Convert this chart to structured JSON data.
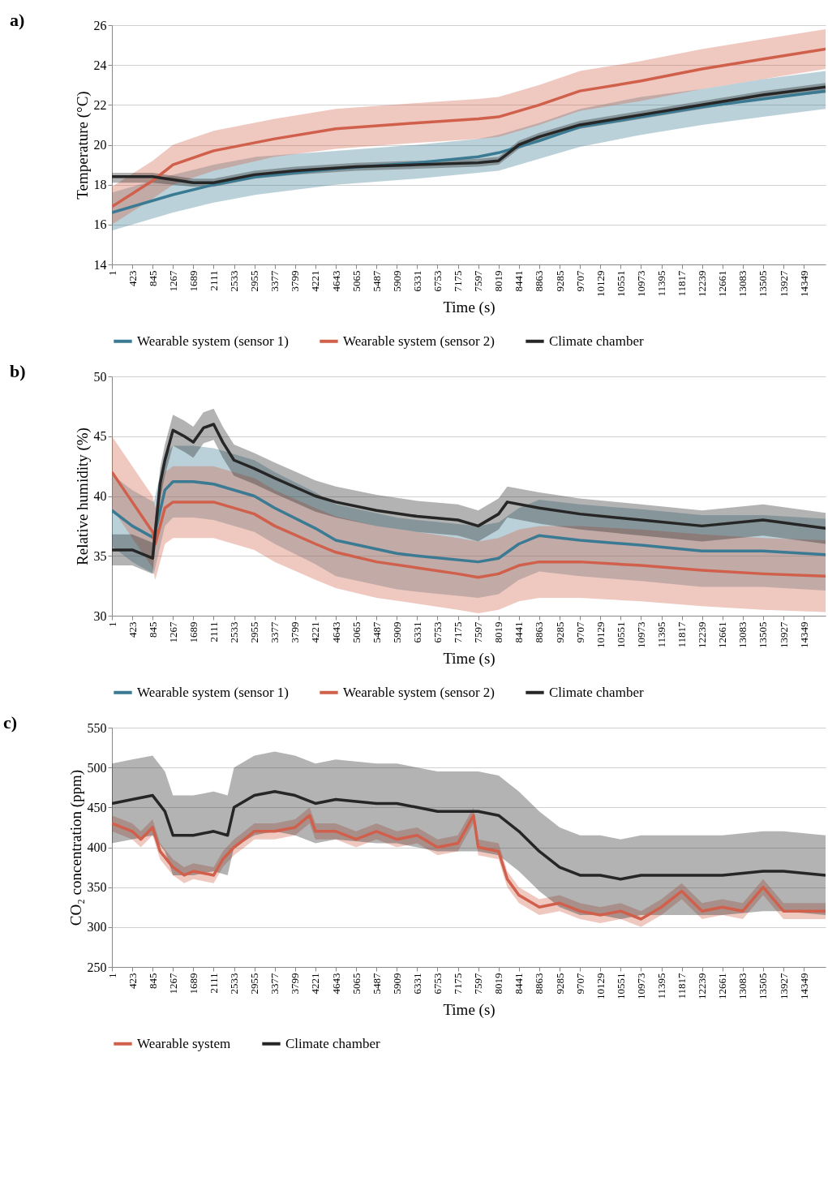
{
  "chart_data": [
    {
      "type": "line",
      "title": "a)",
      "xlabel": "Time (s)",
      "ylabel": "Temperature (°C)",
      "xlim": [
        1,
        14800
      ],
      "ylim": [
        14,
        26
      ],
      "yticks": [
        14,
        16,
        18,
        20,
        22,
        24,
        26
      ],
      "xticks": [
        1,
        423,
        845,
        1267,
        1689,
        2111,
        2533,
        2955,
        3377,
        3799,
        4221,
        4643,
        5065,
        5487,
        5909,
        6331,
        6753,
        7175,
        7597,
        8019,
        8441,
        8863,
        9285,
        9707,
        10129,
        10551,
        10973,
        11395,
        11817,
        12239,
        12661,
        13083,
        13505,
        13927,
        14349
      ],
      "grid": "y",
      "legend": "bottom",
      "series": [
        {
          "name": "Wearable system (sensor 1)",
          "color": "#3b7a93",
          "x": [
            1,
            1267,
            2111,
            3000,
            4643,
            6331,
            7597,
            8019,
            8863,
            9707,
            10973,
            12239,
            13505,
            14800
          ],
          "values": [
            16.6,
            17.5,
            18.0,
            18.4,
            18.8,
            19.1,
            19.4,
            19.6,
            20.2,
            20.9,
            21.4,
            21.9,
            22.3,
            22.7
          ],
          "lower": [
            15.7,
            16.6,
            17.1,
            17.5,
            18.0,
            18.3,
            18.6,
            18.7,
            19.3,
            19.9,
            20.5,
            21.0,
            21.4,
            21.8
          ],
          "upper": [
            17.6,
            18.5,
            19.0,
            19.4,
            19.7,
            20.0,
            20.3,
            20.5,
            21.1,
            21.8,
            22.4,
            22.8,
            23.3,
            23.7
          ]
        },
        {
          "name": "Wearable system (sensor 2)",
          "color": "#d0604b",
          "x": [
            1,
            845,
            1267,
            2111,
            3377,
            4643,
            6331,
            7597,
            8019,
            8863,
            9707,
            10973,
            12239,
            13505,
            14800
          ],
          "values": [
            16.9,
            18.2,
            19.0,
            19.7,
            20.3,
            20.8,
            21.1,
            21.3,
            21.4,
            22.0,
            22.7,
            23.2,
            23.8,
            24.3,
            24.8
          ],
          "lower": [
            16.0,
            17.3,
            18.0,
            18.7,
            19.4,
            19.8,
            20.1,
            20.3,
            20.4,
            21.0,
            21.7,
            22.2,
            22.8,
            23.3,
            23.8
          ],
          "upper": [
            17.9,
            19.2,
            20.0,
            20.7,
            21.3,
            21.8,
            22.1,
            22.3,
            22.4,
            23.0,
            23.7,
            24.2,
            24.8,
            25.3,
            25.8
          ]
        },
        {
          "name": "Climate chamber",
          "color": "#262626",
          "x": [
            1,
            845,
            1689,
            2111,
            2955,
            3799,
            5065,
            6331,
            7597,
            8019,
            8441,
            8863,
            9707,
            10973,
            12239,
            13505,
            14800
          ],
          "values": [
            18.4,
            18.4,
            18.1,
            18.1,
            18.5,
            18.7,
            18.9,
            19.0,
            19.1,
            19.2,
            20.0,
            20.4,
            21.0,
            21.5,
            22.0,
            22.5,
            22.9
          ],
          "lower": [
            18.1,
            18.1,
            17.9,
            17.9,
            18.3,
            18.5,
            18.7,
            18.8,
            18.9,
            19.0,
            19.8,
            20.2,
            20.8,
            21.3,
            21.8,
            22.3,
            22.6
          ],
          "upper": [
            18.6,
            18.6,
            18.3,
            18.3,
            18.7,
            18.9,
            19.1,
            19.2,
            19.3,
            19.4,
            20.2,
            20.6,
            21.2,
            21.7,
            22.2,
            22.7,
            23.1
          ]
        }
      ]
    },
    {
      "type": "line",
      "title": "b)",
      "xlabel": "Time (s)",
      "ylabel": "Relative humidity  (%)",
      "xlim": [
        1,
        14800
      ],
      "ylim": [
        30,
        50
      ],
      "yticks": [
        30,
        35,
        40,
        45,
        50
      ],
      "xticks": [
        1,
        423,
        845,
        1267,
        1689,
        2111,
        2533,
        2955,
        3377,
        3799,
        4221,
        4643,
        5065,
        5487,
        5909,
        6331,
        6753,
        7175,
        7597,
        8019,
        8441,
        8863,
        9285,
        9707,
        10129,
        10551,
        10973,
        11395,
        11817,
        12239,
        12661,
        13083,
        13505,
        13927,
        14349
      ],
      "grid": "y",
      "legend": "bottom",
      "series": [
        {
          "name": "Wearable system (sensor 1)",
          "color": "#3b7a93",
          "x": [
            1,
            423,
            870,
            1100,
            1267,
            1689,
            2111,
            2955,
            3377,
            4221,
            4643,
            5909,
            6331,
            7597,
            8019,
            8441,
            8863,
            9707,
            10973,
            12239,
            13505,
            14800
          ],
          "values": [
            38.8,
            37.5,
            36.5,
            40.5,
            41.2,
            41.2,
            41.0,
            40.0,
            39.0,
            37.3,
            36.3,
            35.2,
            35.0,
            34.5,
            34.8,
            36.0,
            36.7,
            36.3,
            35.9,
            35.4,
            35.4,
            35.1
          ],
          "lower": [
            35.8,
            34.5,
            33.5,
            37.5,
            38.2,
            38.2,
            38.0,
            37.0,
            36.0,
            34.3,
            33.3,
            32.2,
            32.0,
            31.5,
            31.8,
            33.0,
            33.7,
            33.3,
            32.9,
            32.4,
            32.4,
            32.1
          ],
          "upper": [
            41.8,
            40.5,
            39.5,
            43.5,
            44.2,
            44.2,
            44.0,
            43.0,
            42.0,
            40.3,
            39.3,
            38.2,
            38.0,
            37.5,
            37.8,
            39.0,
            39.7,
            39.3,
            38.9,
            38.4,
            38.4,
            38.1
          ]
        },
        {
          "name": "Wearable system (sensor 2)",
          "color": "#d0604b",
          "x": [
            1,
            423,
            845,
            900,
            1100,
            1267,
            2111,
            2955,
            3377,
            4221,
            4643,
            5487,
            6331,
            7175,
            7597,
            8019,
            8441,
            8863,
            9707,
            10973,
            12239,
            13505,
            14800
          ],
          "values": [
            42.0,
            39.5,
            37.0,
            36.0,
            39.0,
            39.5,
            39.5,
            38.5,
            37.5,
            36.0,
            35.3,
            34.5,
            34.0,
            33.5,
            33.2,
            33.5,
            34.2,
            34.5,
            34.5,
            34.2,
            33.8,
            33.5,
            33.3
          ],
          "lower": [
            39.0,
            36.5,
            34.0,
            33.0,
            36.0,
            36.5,
            36.5,
            35.5,
            34.5,
            33.0,
            32.3,
            31.5,
            31.0,
            30.5,
            30.2,
            30.5,
            31.2,
            31.5,
            31.5,
            31.2,
            30.8,
            30.5,
            30.3
          ],
          "upper": [
            45.0,
            42.5,
            40.0,
            39.0,
            42.0,
            42.5,
            42.5,
            41.5,
            40.5,
            39.0,
            38.3,
            37.5,
            37.0,
            36.5,
            36.2,
            36.5,
            37.2,
            37.5,
            37.5,
            37.2,
            36.8,
            36.5,
            36.3
          ]
        },
        {
          "name": "Climate chamber",
          "color": "#262626",
          "x": [
            1,
            423,
            845,
            1000,
            1100,
            1267,
            1500,
            1689,
            1900,
            2111,
            2300,
            2533,
            2955,
            3377,
            4221,
            4643,
            5487,
            6331,
            7175,
            7597,
            8019,
            8200,
            8863,
            9707,
            10973,
            12239,
            13505,
            14800
          ],
          "values": [
            35.5,
            35.5,
            34.8,
            41.0,
            43.0,
            45.5,
            45.0,
            44.5,
            45.7,
            46.0,
            44.5,
            43.0,
            42.3,
            41.5,
            40.0,
            39.5,
            38.8,
            38.3,
            38.0,
            37.5,
            38.5,
            39.5,
            39.0,
            38.5,
            38.0,
            37.5,
            38.0,
            37.3
          ],
          "lower": [
            34.2,
            34.2,
            33.5,
            39.7,
            41.7,
            44.2,
            43.7,
            43.2,
            44.4,
            44.7,
            43.2,
            41.7,
            41.0,
            40.2,
            38.7,
            38.2,
            37.5,
            37.0,
            36.7,
            36.2,
            37.2,
            38.2,
            37.7,
            37.2,
            36.7,
            36.2,
            36.7,
            36.0
          ],
          "upper": [
            36.8,
            36.8,
            36.1,
            42.3,
            44.3,
            46.8,
            46.3,
            45.8,
            47.0,
            47.3,
            45.8,
            44.3,
            43.6,
            42.8,
            41.3,
            40.8,
            40.1,
            39.6,
            39.3,
            38.8,
            39.8,
            40.8,
            40.3,
            39.8,
            39.3,
            38.8,
            39.3,
            38.6
          ]
        }
      ]
    },
    {
      "type": "line",
      "title": "c)",
      "xlabel": "Time (s)",
      "ylabel": "CO₂ concentration (ppm)",
      "xlim": [
        1,
        14800
      ],
      "ylim": [
        250,
        550
      ],
      "yticks": [
        250,
        300,
        350,
        400,
        450,
        500,
        550
      ],
      "xticks": [
        1,
        423,
        845,
        1267,
        1689,
        2111,
        2533,
        2955,
        3377,
        3799,
        4221,
        4643,
        5065,
        5487,
        5909,
        6331,
        6753,
        7175,
        7597,
        8019,
        8441,
        8863,
        9285,
        9707,
        10129,
        10551,
        10973,
        11395,
        11817,
        12239,
        12661,
        13083,
        13505,
        13927,
        14349
      ],
      "grid": "y",
      "legend": "bottom",
      "series": [
        {
          "name": "Wearable system",
          "color": "#d0604b",
          "x": [
            1,
            423,
            600,
            845,
            1000,
            1267,
            1500,
            1689,
            2111,
            2300,
            2533,
            2750,
            2955,
            3377,
            3799,
            4100,
            4221,
            4643,
            5065,
            5487,
            5909,
            6331,
            6753,
            7175,
            7500,
            7597,
            8019,
            8200,
            8441,
            8863,
            9285,
            9707,
            10129,
            10551,
            10973,
            11395,
            11817,
            12239,
            12661,
            13083,
            13505,
            13927,
            14349,
            14800
          ],
          "values": [
            430,
            420,
            410,
            425,
            395,
            375,
            365,
            370,
            365,
            385,
            400,
            410,
            420,
            420,
            425,
            440,
            420,
            420,
            410,
            420,
            410,
            415,
            400,
            405,
            440,
            400,
            395,
            360,
            340,
            325,
            330,
            320,
            315,
            320,
            310,
            325,
            345,
            320,
            325,
            320,
            350,
            320,
            320,
            320
          ],
          "lower": [
            420,
            410,
            400,
            415,
            385,
            365,
            355,
            360,
            355,
            375,
            390,
            400,
            410,
            410,
            415,
            430,
            410,
            410,
            400,
            410,
            400,
            405,
            390,
            395,
            430,
            390,
            385,
            350,
            330,
            315,
            320,
            310,
            305,
            310,
            300,
            315,
            335,
            310,
            315,
            310,
            340,
            310,
            310,
            310
          ],
          "upper": [
            440,
            430,
            420,
            435,
            405,
            385,
            375,
            380,
            375,
            395,
            410,
            420,
            430,
            430,
            435,
            450,
            430,
            430,
            420,
            430,
            420,
            425,
            410,
            415,
            450,
            410,
            405,
            370,
            350,
            335,
            340,
            330,
            325,
            330,
            320,
            335,
            355,
            330,
            335,
            330,
            360,
            330,
            330,
            330
          ]
        },
        {
          "name": "Climate chamber",
          "color": "#262626",
          "x": [
            1,
            423,
            845,
            1100,
            1267,
            1689,
            2111,
            2400,
            2533,
            2955,
            3377,
            3799,
            4221,
            4643,
            5487,
            5909,
            6331,
            6753,
            7175,
            7597,
            8019,
            8441,
            8863,
            9285,
            9707,
            10129,
            10551,
            10973,
            11817,
            12661,
            13505,
            13927,
            14800
          ],
          "values": [
            455,
            460,
            465,
            445,
            415,
            415,
            420,
            415,
            450,
            465,
            470,
            465,
            455,
            460,
            455,
            455,
            450,
            445,
            445,
            445,
            440,
            420,
            395,
            375,
            365,
            365,
            360,
            365,
            365,
            365,
            370,
            370,
            365
          ],
          "lower": [
            405,
            410,
            415,
            395,
            365,
            365,
            370,
            365,
            400,
            415,
            420,
            415,
            405,
            410,
            405,
            405,
            400,
            395,
            395,
            395,
            390,
            370,
            345,
            325,
            315,
            315,
            310,
            315,
            315,
            315,
            320,
            320,
            315
          ],
          "upper": [
            505,
            510,
            515,
            495,
            465,
            465,
            470,
            465,
            500,
            515,
            520,
            515,
            505,
            510,
            505,
            505,
            500,
            495,
            495,
            495,
            490,
            470,
            445,
            425,
            415,
            415,
            410,
            415,
            415,
            415,
            420,
            420,
            415
          ]
        }
      ]
    }
  ]
}
